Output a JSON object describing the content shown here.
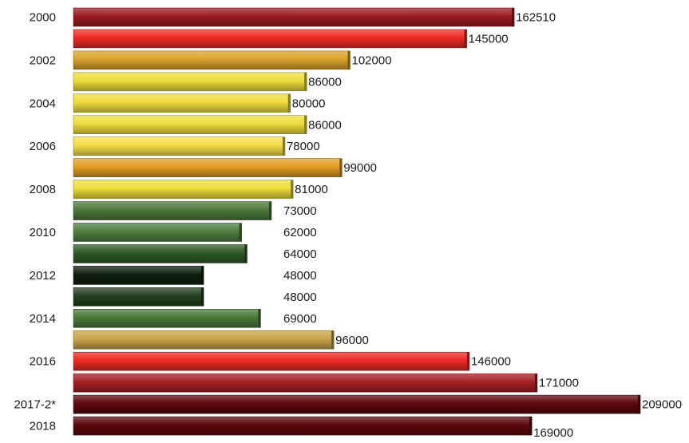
{
  "chart_data": {
    "type": "bar",
    "orientation": "horizontal",
    "title": "",
    "xlabel": "",
    "ylabel": "",
    "grid": false,
    "legend": "none",
    "xlim": [
      0,
      210000
    ],
    "categories": [
      "2000",
      "",
      "2002",
      "",
      "2004",
      "",
      "2006",
      "",
      "2008",
      "",
      "2010",
      "",
      "2012",
      "",
      "2014",
      "",
      "2016",
      "",
      "2017-2*",
      "2018"
    ],
    "values": [
      162510,
      145000,
      102000,
      86000,
      80000,
      86000,
      78000,
      99000,
      81000,
      73000,
      62000,
      64000,
      48000,
      48000,
      69000,
      96000,
      146000,
      171000,
      209000,
      169000
    ],
    "colors": [
      "#9b1c22",
      "#ee2a24",
      "#d9a32a",
      "#eedd3c",
      "#eedd3c",
      "#eedd3c",
      "#f4dd4a",
      "#e29c22",
      "#eedd3c",
      "#4a7a3a",
      "#4e7f40",
      "#2f5a26",
      "#0f200d",
      "#22401e",
      "#4b7a3a",
      "#c9a44a",
      "#ee2a24",
      "#a52025",
      "#5f080d",
      "#5a070c"
    ],
    "value_labels": [
      "162510",
      "145000",
      "102000",
      "86000",
      "80000",
      "86000",
      "78000",
      "99000",
      "81000",
      "73000",
      "62000",
      "64000",
      "48000",
      "48000",
      "69000",
      "96000",
      "146000",
      "171000",
      "209000",
      "169000"
    ]
  }
}
